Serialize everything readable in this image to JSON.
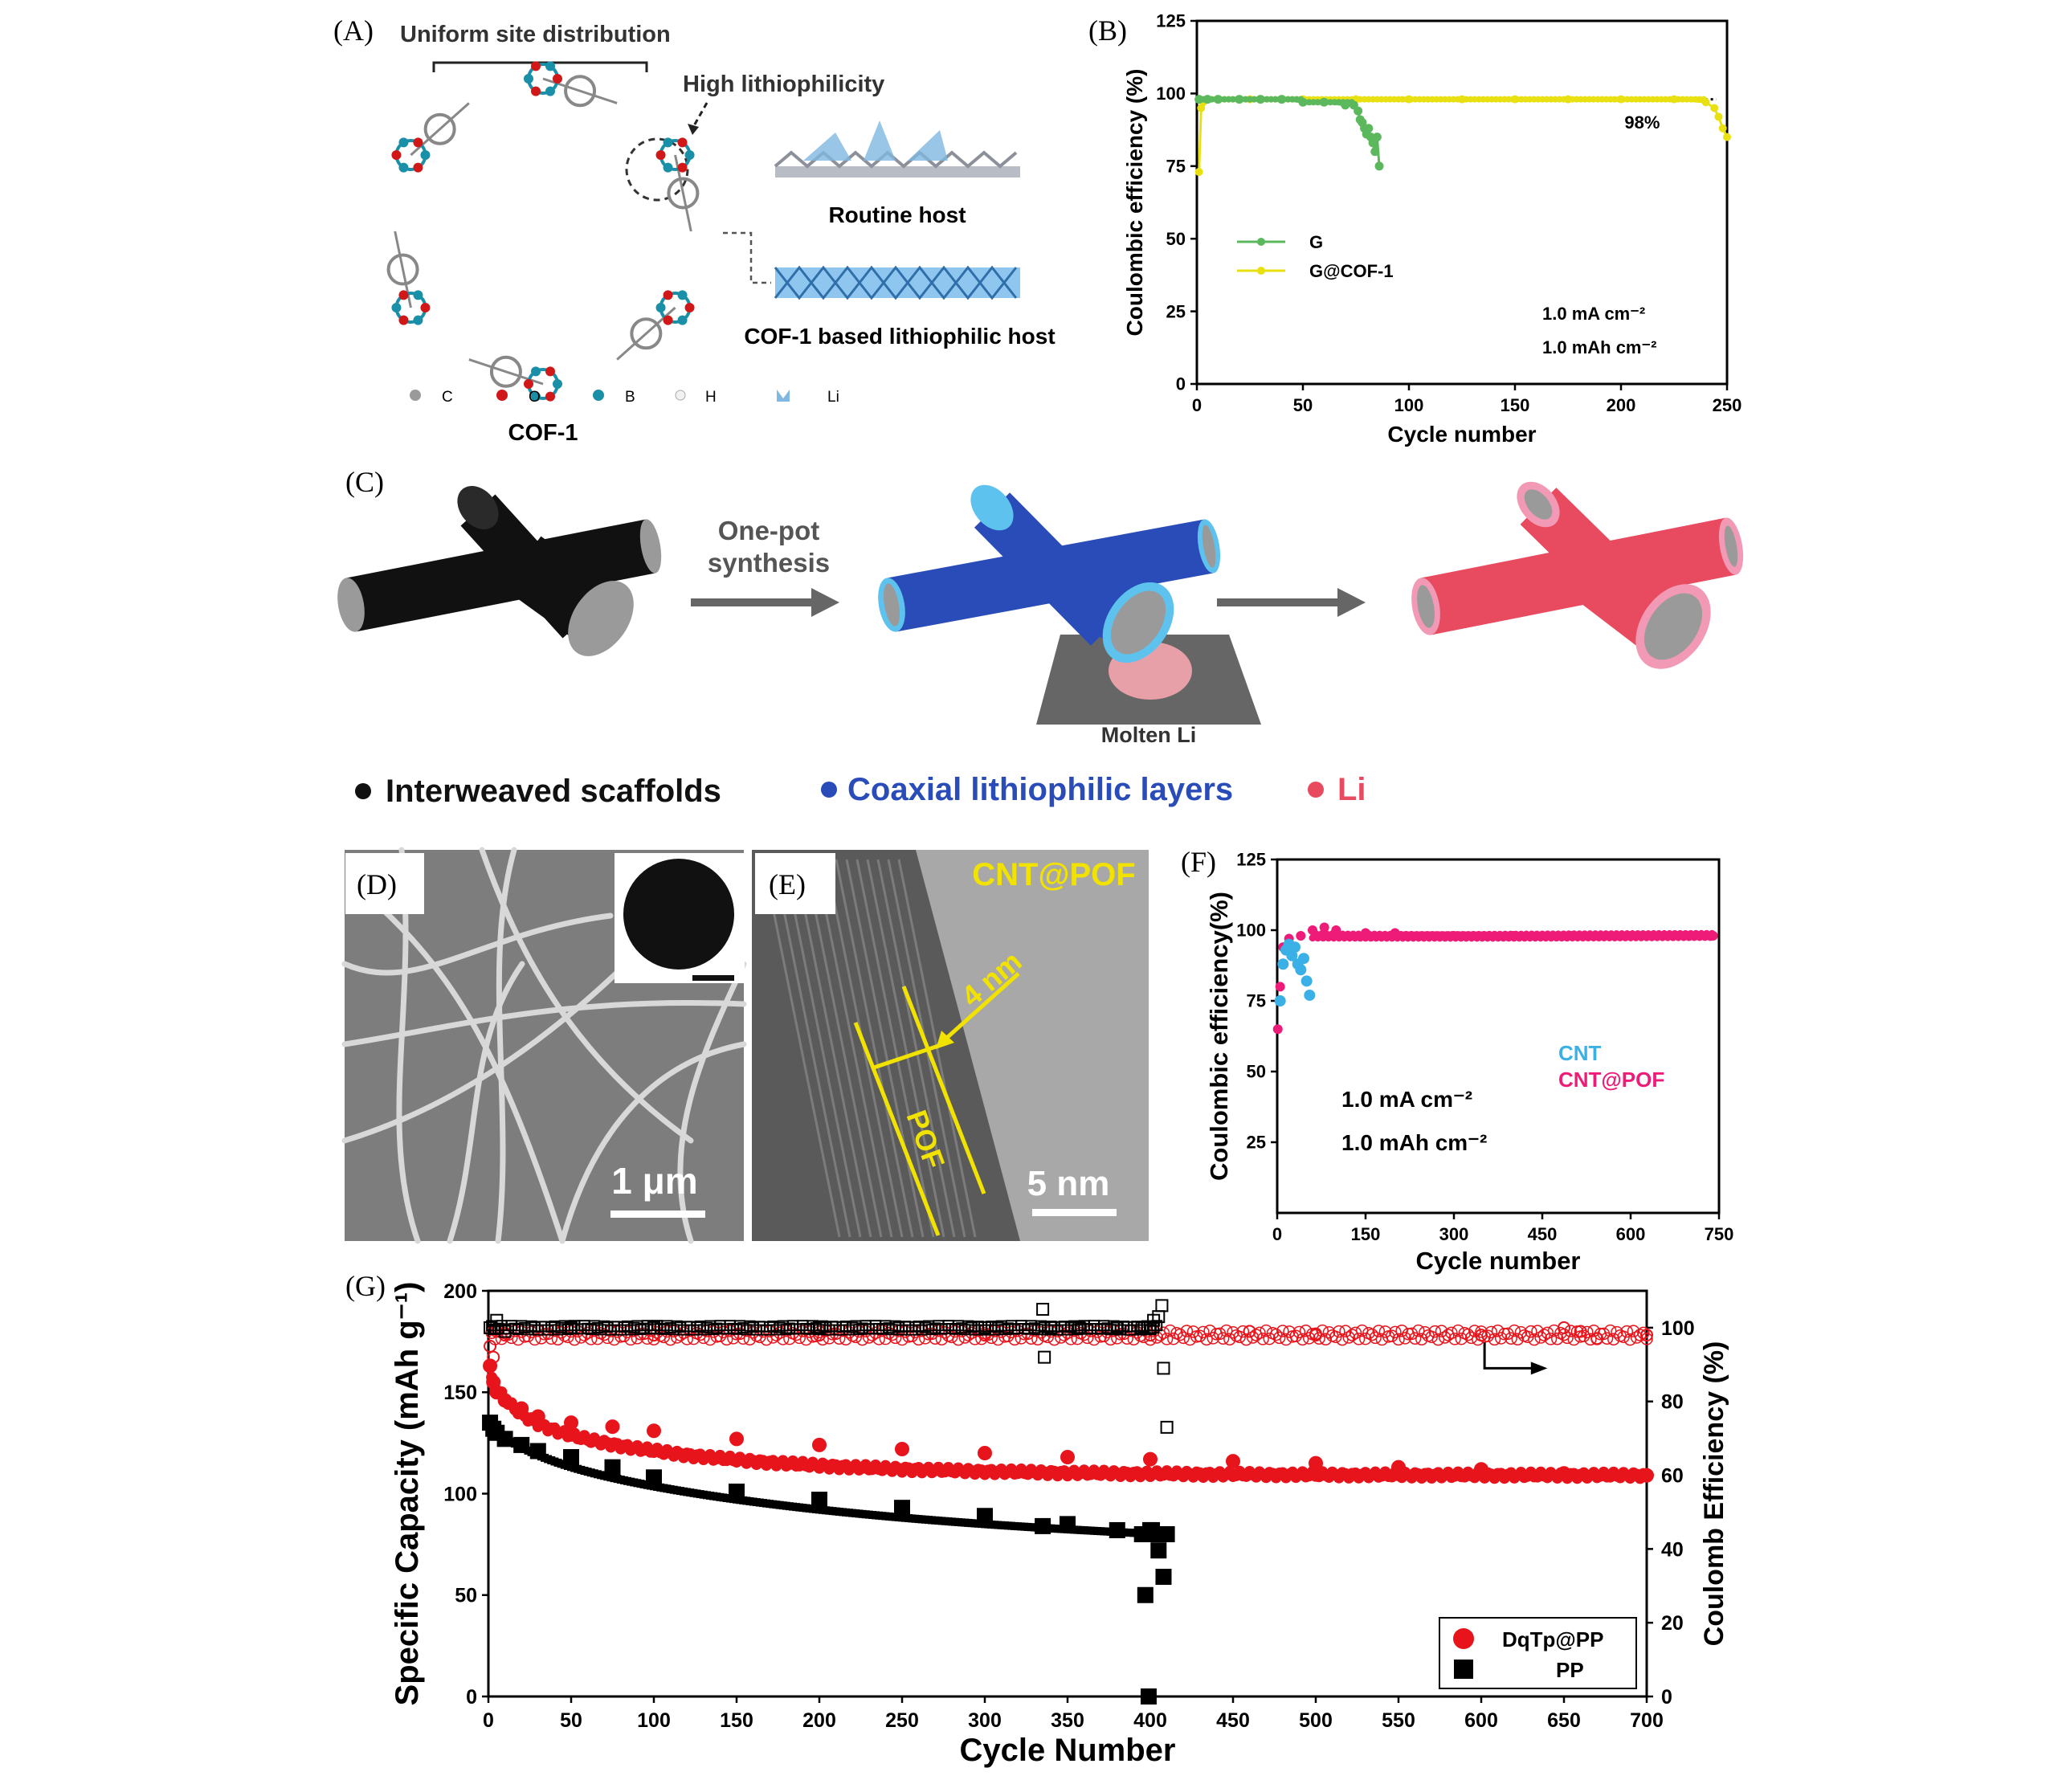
{
  "panels": {
    "a": {
      "letter": "(A)",
      "uniform": "Uniform site distribution",
      "high": "High lithiophilicity",
      "routine": "Routine host",
      "cofhost": "COF-1 based lithiophilic host",
      "legend": [
        "C",
        "O",
        "B",
        "H",
        "Li"
      ],
      "cof": "COF-1"
    },
    "b": {
      "letter": "(B)"
    },
    "c": {
      "letter": "(C)",
      "onepot": [
        "One-pot",
        "synthesis"
      ],
      "molten": "Molten Li",
      "legend": [
        "Interweaved scaffolds",
        "Coaxial lithiophilic layers",
        "Li"
      ]
    },
    "d": {
      "letter": "(D)",
      "scale": "1 μm"
    },
    "e": {
      "letter": "(E)",
      "label": "CNT@POF",
      "thickness": "4 nm",
      "pof": "POF",
      "scale": "5 nm"
    },
    "f": {
      "letter": "(F)"
    },
    "g": {
      "letter": "(G)"
    }
  },
  "colors": {
    "green": "#5cb85c",
    "yellow": "#e8e010",
    "blue": "#3bb0e6",
    "pink": "#ef1b78",
    "red": "#e8141c",
    "black": "#000000",
    "coax_blue": "#2a4cb8",
    "li_pink": "#e84a5f"
  },
  "chart_data": [
    {
      "id": "B",
      "type": "scatter",
      "xlabel": "Cycle number",
      "ylabel": "Coulombic efficiency (%)",
      "xlim": [
        0,
        250
      ],
      "ylim": [
        0,
        125
      ],
      "xticks": [
        0,
        50,
        100,
        150,
        200,
        250
      ],
      "yticks": [
        0,
        25,
        50,
        75,
        100,
        125
      ],
      "legend_position": "center-left",
      "annotations": [
        "98%",
        "1.0 mA cm⁻²",
        "1.0 mAh cm⁻²"
      ],
      "series": [
        {
          "name": "G",
          "color": "#5cb85c",
          "x": [
            1,
            5,
            10,
            20,
            30,
            40,
            50,
            60,
            70,
            74,
            76,
            77,
            78,
            79,
            80,
            81,
            82,
            83,
            84,
            85,
            86
          ],
          "y": [
            98,
            98,
            98,
            98,
            98,
            98,
            97,
            97,
            96,
            96,
            94,
            91,
            90,
            88,
            86,
            88,
            85,
            83,
            80,
            85,
            75
          ]
        },
        {
          "name": "G@COF-1",
          "color": "#e8e010",
          "x": [
            1,
            2,
            3,
            5,
            10,
            25,
            50,
            75,
            100,
            125,
            150,
            175,
            200,
            225,
            240,
            244,
            246,
            248,
            250
          ],
          "y": [
            73,
            95,
            97,
            98,
            98,
            98,
            98,
            98,
            98,
            98,
            98,
            98,
            98,
            98,
            97,
            95,
            92,
            88,
            85
          ]
        }
      ],
      "reference_line": 98
    },
    {
      "id": "F",
      "type": "scatter",
      "xlabel": "Cycle number",
      "ylabel": "Coulombic efficiency(%)",
      "xlim": [
        0,
        750
      ],
      "ylim": [
        0,
        125
      ],
      "xticks": [
        0,
        150,
        300,
        450,
        600,
        750
      ],
      "yticks": [
        25,
        50,
        75,
        100,
        125
      ],
      "legend_position": "center-right",
      "annotations": [
        "1.0 mA cm⁻²",
        "1.0 mAh cm⁻²"
      ],
      "series": [
        {
          "name": "CNT",
          "color": "#3bb0e6",
          "x": [
            5,
            10,
            15,
            20,
            25,
            30,
            35,
            40,
            45,
            50,
            55
          ],
          "y": [
            75,
            88,
            93,
            95,
            91,
            94,
            88,
            86,
            90,
            82,
            77
          ]
        },
        {
          "name": "CNT@POF",
          "color": "#ef1b78",
          "x": [
            1,
            5,
            10,
            20,
            40,
            60,
            80,
            100,
            150,
            200,
            300,
            400,
            500,
            600,
            700,
            740
          ],
          "y": [
            65,
            80,
            94,
            97,
            98,
            100,
            101,
            100,
            99,
            99,
            98,
            98,
            98,
            98,
            98,
            98
          ]
        }
      ]
    },
    {
      "id": "G",
      "type": "scatter",
      "xlabel": "Cycle Number",
      "ylabel": "Specific Capacity (mAh g⁻¹)",
      "y2label": "Coulomb Efficiency (%)",
      "xlim": [
        0,
        700
      ],
      "ylim": [
        0,
        200
      ],
      "y2lim": [
        0,
        110
      ],
      "xticks": [
        0,
        50,
        100,
        150,
        200,
        250,
        300,
        350,
        400,
        450,
        500,
        550,
        600,
        650,
        700
      ],
      "yticks": [
        0,
        50,
        100,
        150,
        200
      ],
      "y2ticks": [
        0,
        20,
        40,
        60,
        80,
        100
      ],
      "legend_position": "bottom-right",
      "series": [
        {
          "name": "DqTp@PP",
          "axis": "left",
          "color": "#e8141c",
          "x": [
            1,
            3,
            5,
            10,
            20,
            30,
            50,
            75,
            100,
            150,
            200,
            250,
            300,
            350,
            400,
            450,
            500,
            550,
            600,
            650,
            700
          ],
          "y": [
            163,
            155,
            150,
            146,
            142,
            138,
            135,
            133,
            131,
            127,
            124,
            122,
            120,
            118,
            117,
            116,
            115,
            113,
            112,
            110,
            109
          ]
        },
        {
          "name": "PP",
          "axis": "left",
          "color": "#000000",
          "x": [
            1,
            3,
            5,
            10,
            20,
            30,
            50,
            75,
            100,
            150,
            200,
            250,
            300,
            335,
            350,
            380,
            395,
            397,
            399,
            400,
            401,
            403,
            405,
            408,
            410
          ],
          "y": [
            135,
            132,
            130,
            127,
            124,
            121,
            118,
            113,
            108,
            101,
            97,
            93,
            89,
            84,
            85,
            82,
            80,
            50,
            0,
            82,
            82,
            80,
            72,
            59,
            80
          ]
        },
        {
          "name": "DqTp@PP CE",
          "axis": "right",
          "color": "#e8141c",
          "x": [
            1,
            3,
            5,
            10,
            100,
            200,
            300,
            400,
            460,
            500,
            600,
            650,
            660,
            670,
            700
          ],
          "y": [
            95,
            92,
            99,
            98,
            98,
            98,
            98,
            98,
            99,
            98,
            98,
            100,
            99,
            97,
            98
          ]
        },
        {
          "name": "PP CE",
          "axis": "right",
          "color": "#000000",
          "x": [
            1,
            5,
            10,
            50,
            100,
            200,
            300,
            335,
            336,
            340,
            357,
            380,
            395,
            400,
            402,
            405,
            407,
            408,
            410
          ],
          "y": [
            100,
            102,
            99,
            100,
            100,
            100,
            100,
            105,
            92,
            100,
            100,
            100,
            100,
            100,
            102,
            103,
            106,
            89,
            73
          ]
        }
      ]
    }
  ]
}
